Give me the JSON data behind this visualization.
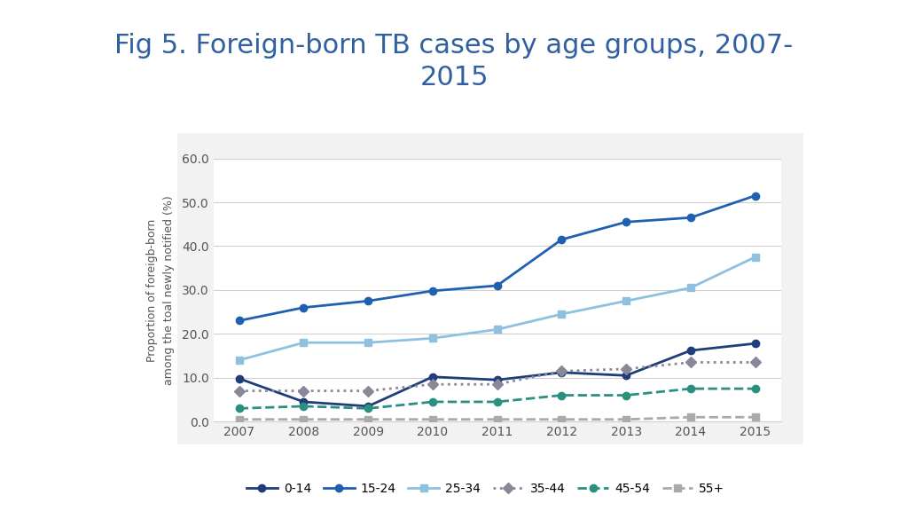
{
  "title": "Fig 5. Foreign-born TB cases by age groups, 2007-\n2015",
  "ylabel": "Proportion of foreigb-born\namong the toal newly notified (%)",
  "years": [
    2007,
    2008,
    2009,
    2010,
    2011,
    2012,
    2013,
    2014,
    2015
  ],
  "series": {
    "0-14": [
      9.8,
      4.5,
      3.5,
      10.2,
      9.5,
      11.2,
      10.5,
      16.2,
      17.8
    ],
    "15-24": [
      23.0,
      26.0,
      27.5,
      29.8,
      31.0,
      41.5,
      45.5,
      46.5,
      51.5
    ],
    "25-34": [
      14.0,
      18.0,
      18.0,
      19.0,
      21.0,
      24.5,
      27.5,
      30.5,
      37.5
    ],
    "35-44": [
      7.0,
      7.0,
      7.0,
      8.5,
      8.5,
      11.5,
      12.0,
      13.5,
      13.5
    ],
    "45-54": [
      3.0,
      3.5,
      3.0,
      4.5,
      4.5,
      6.0,
      6.0,
      7.5,
      7.5
    ],
    "55+": [
      0.5,
      0.5,
      0.5,
      0.5,
      0.5,
      0.5,
      0.5,
      1.0,
      1.0
    ]
  },
  "colors": {
    "0-14": "#1f3d7a",
    "15-24": "#2060b0",
    "25-34": "#90c0e0",
    "35-44": "#888899",
    "45-54": "#2a9080",
    "55+": "#aaaaaa"
  },
  "linestyles": {
    "0-14": "solid",
    "15-24": "solid",
    "25-34": "solid",
    "35-44": "dotted",
    "45-54": "dashed",
    "55+": "dashed"
  },
  "markers": {
    "0-14": "o",
    "15-24": "o",
    "25-34": "s",
    "35-44": "D",
    "45-54": "o",
    "55+": "s"
  },
  "ylim": [
    0.0,
    60.0
  ],
  "yticks": [
    0.0,
    10.0,
    20.0,
    30.0,
    40.0,
    50.0,
    60.0
  ],
  "background_color": "#ffffff",
  "plot_bg_color": "#ffffff",
  "title_color": "#3060a0",
  "axis_label_color": "#555555",
  "grid_color": "#d0d0d0",
  "box_bg": "#f0f0f0",
  "title_fontsize": 22,
  "tick_fontsize": 10,
  "ylabel_fontsize": 9,
  "legend_fontsize": 10
}
